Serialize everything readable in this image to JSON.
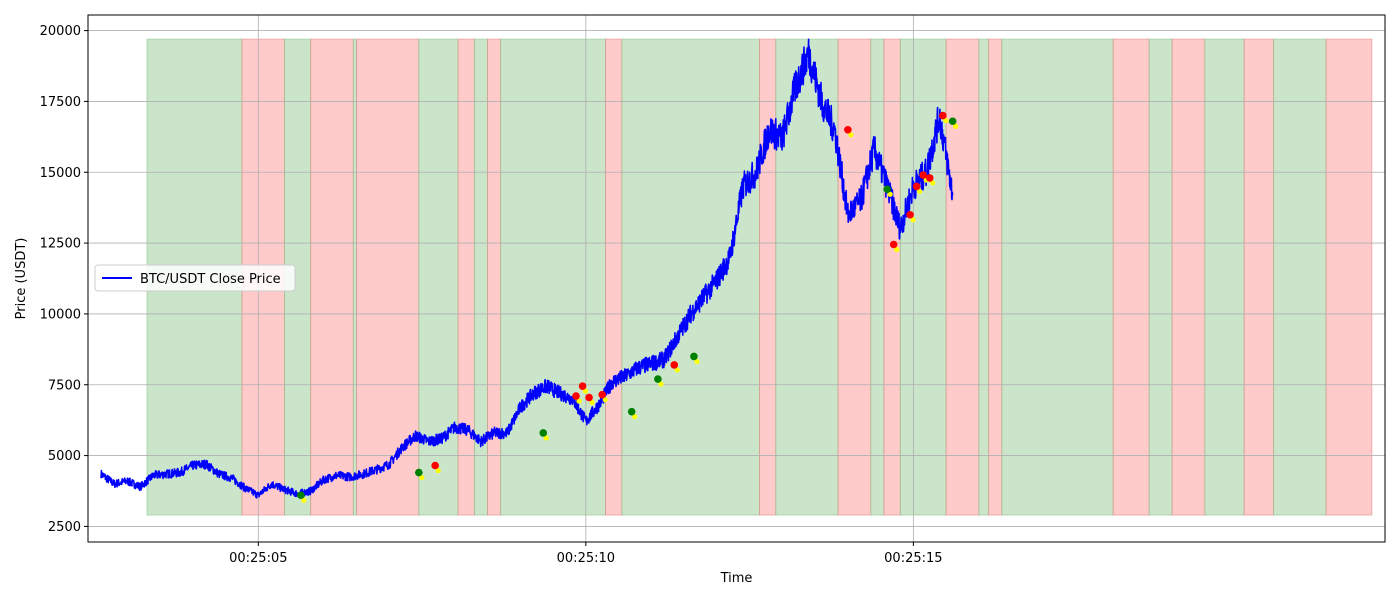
{
  "chart_data": {
    "type": "line",
    "title": "",
    "xlabel": "Time",
    "ylabel": "Price (USDT)",
    "x_ticks": [
      "00:25:05",
      "00:25:10",
      "00:25:15"
    ],
    "y_ticks": [
      "2500",
      "5000",
      "7500",
      "10000",
      "12500",
      "15000",
      "17500",
      "20000"
    ],
    "xlim": [
      2.4,
      16.2
    ],
    "ylim": [
      1950,
      20550
    ],
    "grid": true,
    "legend": {
      "location": "center-left",
      "entries": [
        "BTC/USDT Close Price"
      ]
    },
    "colors": {
      "line": "#0000ff",
      "green_region": "#9fd09f",
      "red_region": "#ff9f9f",
      "buy_marker": "#008000",
      "sell_marker": "#ff0000",
      "minor_marker": "#ffff00"
    },
    "series": [
      {
        "name": "BTC/USDT Close Price",
        "x": [
          2.6,
          2.8,
          3.0,
          3.2,
          3.4,
          3.6,
          3.8,
          4.0,
          4.2,
          4.4,
          4.6,
          4.8,
          5.0,
          5.2,
          5.4,
          5.6,
          5.8,
          6.0,
          6.2,
          6.4,
          6.6,
          6.8,
          7.0,
          7.2,
          7.4,
          7.6,
          7.8,
          8.0,
          8.2,
          8.4,
          8.6,
          8.8,
          9.0,
          9.2,
          9.4,
          9.6,
          9.8,
          10.0,
          10.2,
          10.4,
          10.6,
          10.8,
          11.0,
          11.2,
          11.4,
          11.6,
          11.8,
          12.0,
          12.2,
          12.4,
          12.6,
          12.8,
          13.0,
          13.2,
          13.4,
          13.6,
          13.8,
          14.0,
          14.2,
          14.4,
          14.6,
          14.8,
          15.0,
          15.2,
          15.4,
          15.6
        ],
        "values": [
          4350,
          4000,
          4100,
          3900,
          4300,
          4350,
          4400,
          4650,
          4700,
          4350,
          4200,
          3850,
          3600,
          4000,
          3800,
          3650,
          3750,
          4150,
          4300,
          4250,
          4350,
          4500,
          4700,
          5300,
          5700,
          5500,
          5600,
          6000,
          5900,
          5500,
          5800,
          5800,
          6700,
          7200,
          7450,
          7200,
          7000,
          6200,
          6800,
          7600,
          7800,
          8100,
          8250,
          8400,
          9200,
          10000,
          10600,
          11200,
          12000,
          14500,
          15000,
          16500,
          16200,
          18000,
          19200,
          17500,
          16500,
          13500,
          14000,
          15800,
          14500,
          13000,
          14500,
          15000,
          17000,
          14200
        ]
      }
    ],
    "regions": [
      {
        "start": 3.3,
        "end": 4.75,
        "color": "green"
      },
      {
        "start": 4.75,
        "end": 5.4,
        "color": "red"
      },
      {
        "start": 5.4,
        "end": 5.8,
        "color": "green"
      },
      {
        "start": 5.8,
        "end": 6.45,
        "color": "red"
      },
      {
        "start": 6.45,
        "end": 6.5,
        "color": "green"
      },
      {
        "start": 6.5,
        "end": 7.45,
        "color": "red"
      },
      {
        "start": 7.45,
        "end": 8.05,
        "color": "green"
      },
      {
        "start": 8.05,
        "end": 8.3,
        "color": "red"
      },
      {
        "start": 8.3,
        "end": 8.5,
        "color": "green"
      },
      {
        "start": 8.5,
        "end": 8.7,
        "color": "red"
      },
      {
        "start": 8.7,
        "end": 10.3,
        "color": "green"
      },
      {
        "start": 10.3,
        "end": 10.55,
        "color": "red"
      },
      {
        "start": 10.55,
        "end": 12.65,
        "color": "green"
      },
      {
        "start": 12.65,
        "end": 12.9,
        "color": "red"
      },
      {
        "start": 12.9,
        "end": 13.85,
        "color": "green"
      },
      {
        "start": 13.85,
        "end": 14.35,
        "color": "red"
      },
      {
        "start": 14.35,
        "end": 14.55,
        "color": "green"
      },
      {
        "start": 14.55,
        "end": 14.8,
        "color": "red"
      },
      {
        "start": 14.8,
        "end": 15.5,
        "color": "green"
      },
      {
        "start": 15.5,
        "end": 16.0,
        "color": "red"
      },
      {
        "start": 16.0,
        "end": 16.15,
        "color": "green"
      },
      {
        "start": 16.15,
        "end": 16.35,
        "color": "red"
      },
      {
        "start": 16.35,
        "end": 18.05,
        "color": "green"
      },
      {
        "start": 18.05,
        "end": 18.6,
        "color": "red"
      },
      {
        "start": 18.6,
        "end": 18.95,
        "color": "green"
      },
      {
        "start": 18.95,
        "end": 19.45,
        "color": "red"
      },
      {
        "start": 19.45,
        "end": 20.05,
        "color": "green"
      },
      {
        "start": 20.05,
        "end": 20.5,
        "color": "red"
      },
      {
        "start": 20.5,
        "end": 21.3,
        "color": "green"
      },
      {
        "start": 21.3,
        "end": 22.0,
        "color": "red"
      }
    ],
    "markers": [
      {
        "x": 5.65,
        "y": 3600,
        "kind": "buy"
      },
      {
        "x": 7.45,
        "y": 4400,
        "kind": "buy"
      },
      {
        "x": 7.7,
        "y": 4650,
        "kind": "sell"
      },
      {
        "x": 9.35,
        "y": 5800,
        "kind": "buy"
      },
      {
        "x": 9.85,
        "y": 7100,
        "kind": "sell"
      },
      {
        "x": 9.95,
        "y": 7450,
        "kind": "sell"
      },
      {
        "x": 10.05,
        "y": 7050,
        "kind": "sell"
      },
      {
        "x": 10.25,
        "y": 7150,
        "kind": "sell"
      },
      {
        "x": 10.7,
        "y": 6550,
        "kind": "buy"
      },
      {
        "x": 11.1,
        "y": 7700,
        "kind": "buy"
      },
      {
        "x": 11.35,
        "y": 8200,
        "kind": "sell"
      },
      {
        "x": 11.65,
        "y": 8500,
        "kind": "buy"
      },
      {
        "x": 14.0,
        "y": 16500,
        "kind": "sell"
      },
      {
        "x": 14.6,
        "y": 14400,
        "kind": "buy"
      },
      {
        "x": 14.7,
        "y": 12450,
        "kind": "sell"
      },
      {
        "x": 14.95,
        "y": 13500,
        "kind": "sell"
      },
      {
        "x": 15.05,
        "y": 14500,
        "kind": "sell"
      },
      {
        "x": 15.15,
        "y": 14900,
        "kind": "sell"
      },
      {
        "x": 15.25,
        "y": 14800,
        "kind": "sell"
      },
      {
        "x": 15.45,
        "y": 17000,
        "kind": "sell"
      },
      {
        "x": 15.6,
        "y": 16800,
        "kind": "buy"
      }
    ]
  }
}
